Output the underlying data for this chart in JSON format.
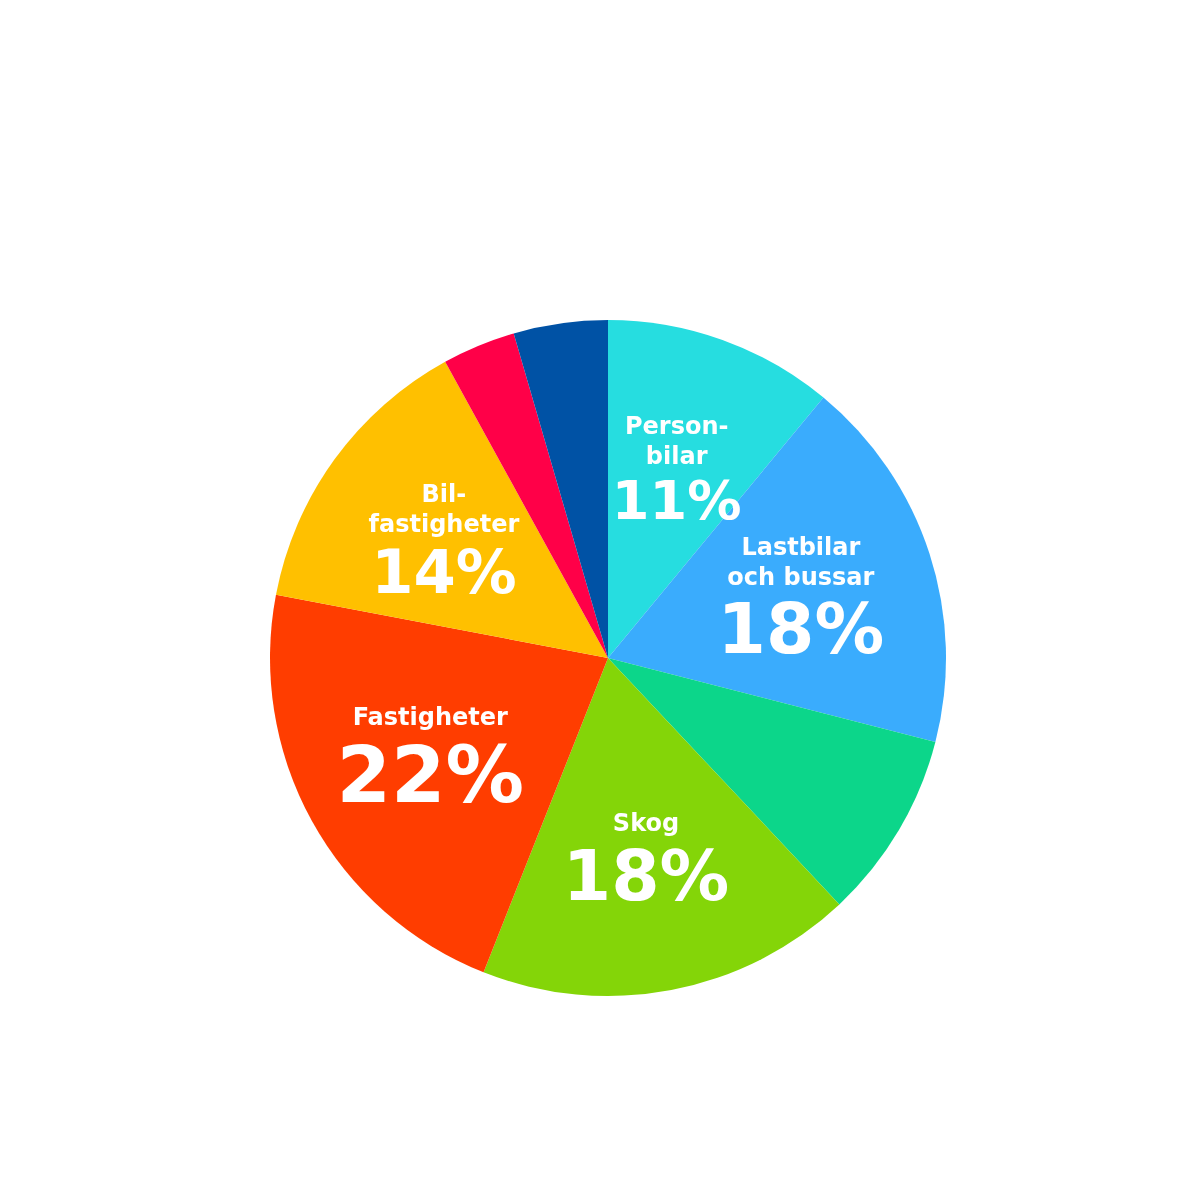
{
  "chart_data": {
    "type": "pie",
    "categories": [
      "Person-\nbilar",
      "Lastbilar\noch bussar",
      null,
      "Skog",
      "Fastigheter",
      "Bil-\nfastigheter",
      null,
      null
    ],
    "values": [
      11,
      18,
      9,
      18,
      22,
      14,
      3.5,
      4.5
    ],
    "value_labels": [
      "11%",
      "18%",
      null,
      "18%",
      "22%",
      "14%",
      null,
      null
    ],
    "colors": [
      "#26dde0",
      "#3aacfd",
      "#0cd68a",
      "#84d508",
      "#ff3d00",
      "#ffc000",
      "#ff0048",
      "#0052a5"
    ]
  }
}
